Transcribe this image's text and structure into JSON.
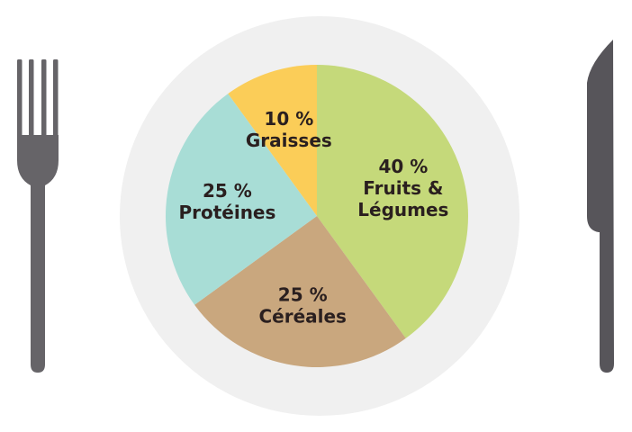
{
  "chart_data": {
    "type": "pie",
    "start_angle_deg": 0,
    "direction": "clockwise",
    "slices": [
      {
        "pct_label": "40 %",
        "lines": [
          "Fruits &",
          "Légumes"
        ],
        "value": 40,
        "color": "#c5d97a"
      },
      {
        "pct_label": "25 %",
        "lines": [
          "Céréales"
        ],
        "value": 25,
        "color": "#c9a77e"
      },
      {
        "pct_label": "25 %",
        "lines": [
          "Protéines"
        ],
        "value": 25,
        "color": "#a8ddd6"
      },
      {
        "pct_label": "10 %",
        "lines": [
          "Graisses"
        ],
        "value": 10,
        "color": "#fbcd58"
      }
    ]
  },
  "colors": {
    "plate": "#f0f0f0",
    "utensil": "#666468",
    "utensil_dark": "#57555a"
  },
  "icons": [
    "fork-icon",
    "knife-icon",
    "plate-icon"
  ]
}
